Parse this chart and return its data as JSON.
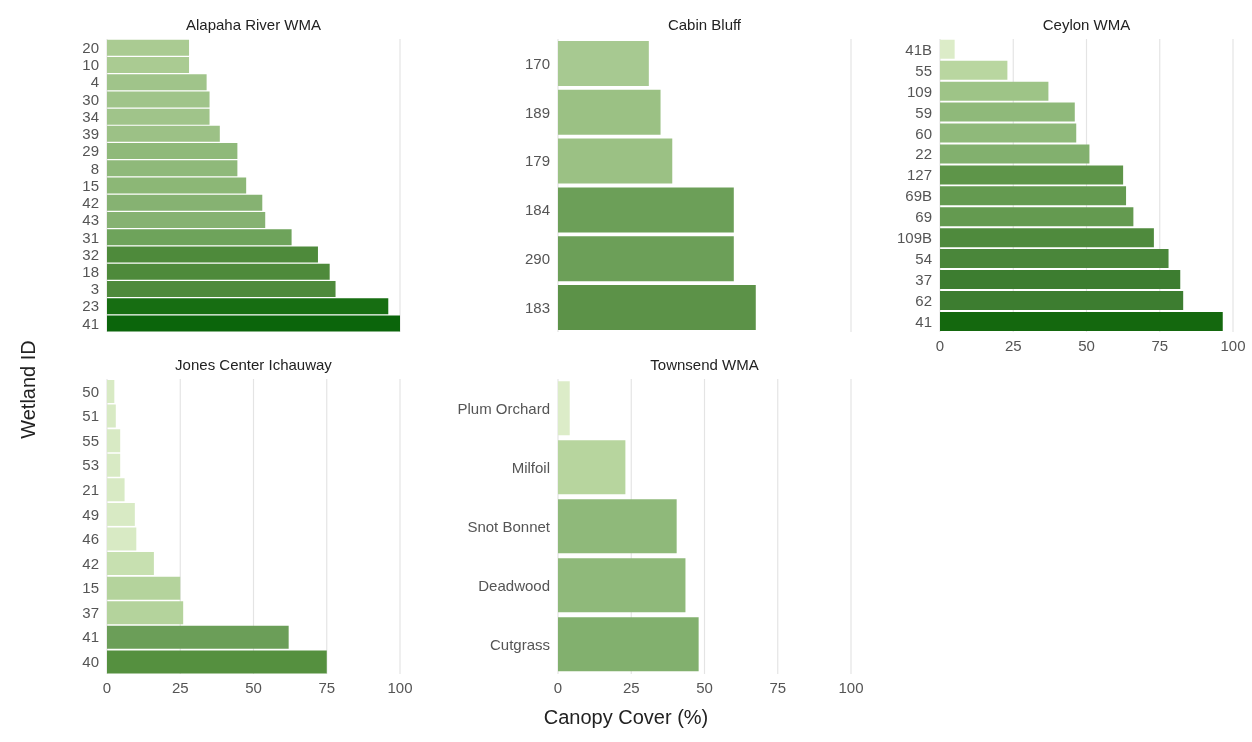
{
  "chart_data": [
    {
      "type": "bar",
      "orientation": "horizontal",
      "title": "Alapaha River WMA",
      "ylabel": "Wetland ID",
      "categories": [
        "20",
        "10",
        "4",
        "30",
        "34",
        "39",
        "29",
        "8",
        "15",
        "42",
        "43",
        "31",
        "32",
        "18",
        "3",
        "23",
        "41"
      ],
      "values": [
        28,
        28,
        34,
        35,
        35,
        38.5,
        44.5,
        44.5,
        47.5,
        53,
        54,
        63,
        72,
        76,
        78,
        96,
        100
      ],
      "colors": [
        "#aacb92",
        "#aacb92",
        "#a0c48a",
        "#a0c48a",
        "#a0c48a",
        "#9cc186",
        "#8fb97a",
        "#8fb97a",
        "#8cb776",
        "#86b272",
        "#86b272",
        "#6ea35b",
        "#4e8a3b",
        "#4e8a3b",
        "#4e8a3b",
        "#176e12",
        "#0b650b"
      ],
      "xlim": [
        0,
        100
      ],
      "xticks": [
        0,
        25,
        50,
        75,
        100
      ],
      "grid": "x",
      "tick_labels": "y"
    },
    {
      "type": "bar",
      "orientation": "horizontal",
      "title": "Cabin Bluff",
      "categories": [
        "170",
        "189",
        "179",
        "184",
        "290",
        "183"
      ],
      "values": [
        31,
        35,
        39,
        60,
        60,
        67.5
      ],
      "colors": [
        "#a7c991",
        "#9bc184",
        "#9bc184",
        "#6c9f58",
        "#6c9f58",
        "#5c9248"
      ],
      "xlim": [
        0,
        100
      ],
      "xticks": [
        0,
        25,
        50,
        75,
        100
      ],
      "grid": "x",
      "tick_labels": "y"
    },
    {
      "type": "bar",
      "orientation": "horizontal",
      "title": "Ceylon WMA",
      "categories": [
        "41B",
        "55",
        "109",
        "59",
        "60",
        "22",
        "127",
        "69B",
        "69",
        "109B",
        "54",
        "37",
        "62",
        "41"
      ],
      "values": [
        5,
        23,
        37,
        46,
        46.5,
        51,
        62.5,
        63.5,
        66,
        73,
        78,
        82,
        83,
        96.5
      ],
      "colors": [
        "#dcecc8",
        "#b9d6a0",
        "#9ec487",
        "#8fb97a",
        "#8fb97a",
        "#82b06e",
        "#5e9549",
        "#649a50",
        "#649a50",
        "#4f8a3d",
        "#4a863a",
        "#3d7d30",
        "#3d7d30",
        "#14680e"
      ],
      "xlim": [
        0,
        100
      ],
      "xticks": [
        0,
        25,
        50,
        75,
        100
      ],
      "grid": "x"
    },
    {
      "type": "bar",
      "orientation": "horizontal",
      "title": "Jones Center Ichauway",
      "categories": [
        "50",
        "51",
        "55",
        "53",
        "21",
        "49",
        "46",
        "42",
        "15",
        "37",
        "41",
        "40"
      ],
      "values": [
        2.5,
        3,
        4.5,
        4.5,
        6,
        9.5,
        10,
        16,
        25,
        26,
        62,
        75
      ],
      "colors": [
        "#d8eac4",
        "#d8eac4",
        "#d8eac4",
        "#d8eac4",
        "#d8eac4",
        "#d8eac4",
        "#d8eac4",
        "#c7e0b0",
        "#b4d39c",
        "#b4d39c",
        "#6b9e58",
        "#55903f"
      ],
      "xlim": [
        0,
        100
      ],
      "xticks": [
        0,
        25,
        50,
        75,
        100
      ],
      "grid": "x"
    },
    {
      "type": "bar",
      "orientation": "horizontal",
      "title": "Townsend WMA",
      "xlabel": "Canopy Cover (%)",
      "categories": [
        "Plum Orchard",
        "Milfoil",
        "Snot Bonnet",
        "Deadwood",
        "Cutgrass"
      ],
      "values": [
        4,
        23,
        40.5,
        43.5,
        48
      ],
      "colors": [
        "#dcecc8",
        "#b7d59e",
        "#8fb97a",
        "#8fb97a",
        "#82b06e"
      ],
      "xlim": [
        0,
        100
      ],
      "xticks": [
        0,
        25,
        50,
        75,
        100
      ],
      "grid": "x"
    }
  ]
}
